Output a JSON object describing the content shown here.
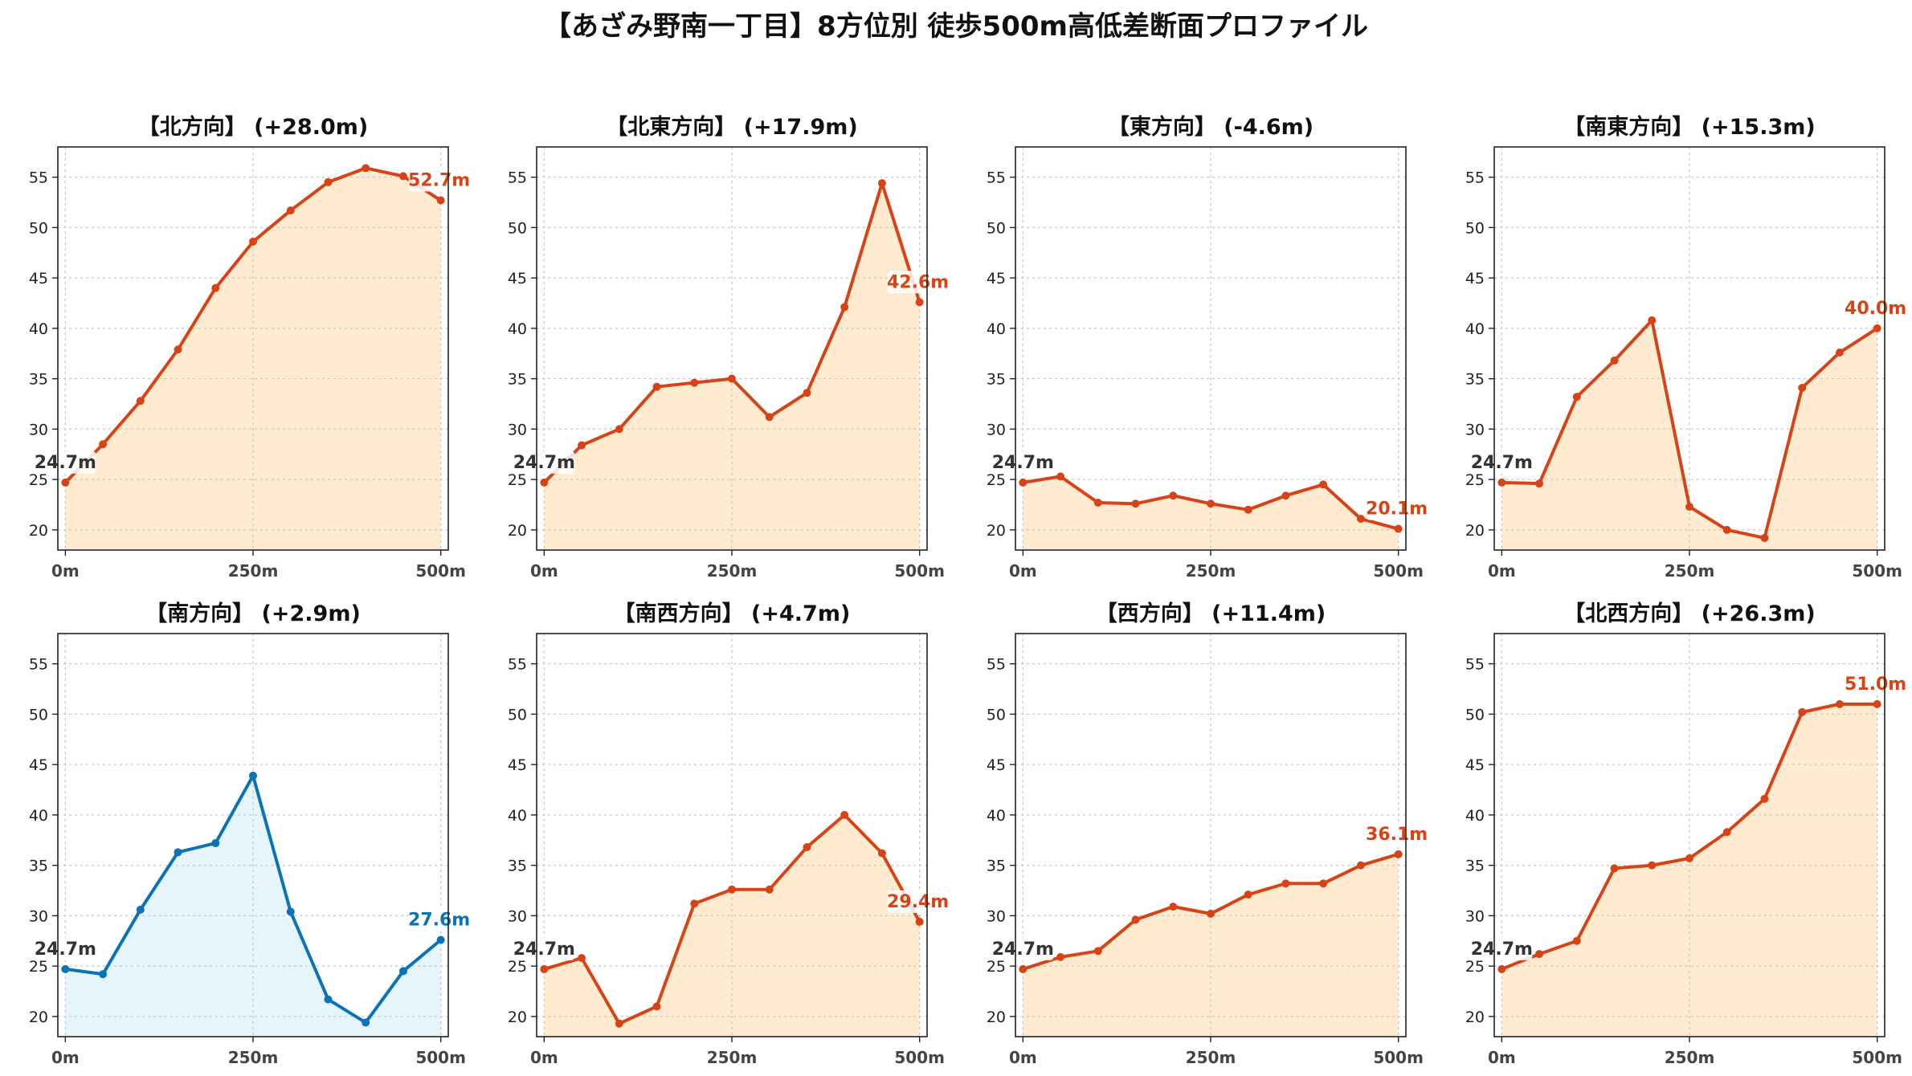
{
  "suptitle": "【あざみ野南一丁目】8方位別 徒歩500m高低差断面プロファイル",
  "colors": {
    "up_line": "#d84315",
    "up_fill": "#ffebd0",
    "down_line": "#0a73b6",
    "down_fill": "#e6f4fb",
    "start_label": "#333333"
  },
  "chart_data": [
    {
      "type": "area",
      "title": "【北方向】 (+28.0m)",
      "color": "up",
      "x": [
        0,
        50,
        100,
        150,
        200,
        250,
        300,
        350,
        400,
        450,
        500
      ],
      "y": [
        24.7,
        28.5,
        32.8,
        37.9,
        44.0,
        48.6,
        51.7,
        54.5,
        55.9,
        55.1,
        52.7
      ],
      "start_label": "24.7m",
      "end_label": "52.7m",
      "xticks": [
        "0m",
        "250m",
        "500m"
      ],
      "xlim": [
        -10,
        510
      ],
      "ylim": [
        18,
        58
      ],
      "yticks": [
        20,
        25,
        30,
        35,
        40,
        45,
        50,
        55
      ],
      "grid": true
    },
    {
      "type": "area",
      "title": "【北東方向】 (+17.9m)",
      "color": "up",
      "x": [
        0,
        50,
        100,
        150,
        200,
        250,
        300,
        350,
        400,
        450,
        500
      ],
      "y": [
        24.7,
        28.4,
        30.0,
        34.2,
        34.6,
        35.0,
        31.2,
        33.6,
        42.1,
        54.4,
        42.6
      ],
      "start_label": "24.7m",
      "end_label": "42.6m",
      "xticks": [
        "0m",
        "250m",
        "500m"
      ],
      "xlim": [
        -10,
        510
      ],
      "ylim": [
        18,
        58
      ],
      "yticks": [
        20,
        25,
        30,
        35,
        40,
        45,
        50,
        55
      ],
      "grid": true
    },
    {
      "type": "area",
      "title": "【東方向】 (-4.6m)",
      "color": "up",
      "x": [
        0,
        50,
        100,
        150,
        200,
        250,
        300,
        350,
        400,
        450,
        500
      ],
      "y": [
        24.7,
        25.3,
        22.7,
        22.6,
        23.4,
        22.6,
        22.0,
        23.4,
        24.5,
        21.1,
        20.1
      ],
      "start_label": "24.7m",
      "end_label": "20.1m",
      "xticks": [
        "0m",
        "250m",
        "500m"
      ],
      "xlim": [
        -10,
        510
      ],
      "ylim": [
        18,
        58
      ],
      "yticks": [
        20,
        25,
        30,
        35,
        40,
        45,
        50,
        55
      ],
      "grid": true
    },
    {
      "type": "area",
      "title": "【南東方向】 (+15.3m)",
      "color": "up",
      "x": [
        0,
        50,
        100,
        150,
        200,
        250,
        300,
        350,
        400,
        450,
        500
      ],
      "y": [
        24.7,
        24.6,
        33.2,
        36.8,
        40.8,
        22.3,
        20.0,
        19.2,
        34.1,
        37.6,
        40.0
      ],
      "start_label": "24.7m",
      "end_label": "40.0m",
      "xticks": [
        "0m",
        "250m",
        "500m"
      ],
      "xlim": [
        -10,
        510
      ],
      "ylim": [
        18,
        58
      ],
      "yticks": [
        20,
        25,
        30,
        35,
        40,
        45,
        50,
        55
      ],
      "grid": true
    },
    {
      "type": "area",
      "title": "【南方向】 (+2.9m)",
      "color": "down",
      "x": [
        0,
        50,
        100,
        150,
        200,
        250,
        300,
        350,
        400,
        450,
        500
      ],
      "y": [
        24.7,
        24.2,
        30.6,
        36.3,
        37.2,
        43.9,
        30.4,
        21.7,
        19.4,
        24.5,
        27.6
      ],
      "start_label": "24.7m",
      "end_label": "27.6m",
      "xticks": [
        "0m",
        "250m",
        "500m"
      ],
      "xlim": [
        -10,
        510
      ],
      "ylim": [
        18,
        58
      ],
      "yticks": [
        20,
        25,
        30,
        35,
        40,
        45,
        50,
        55
      ],
      "grid": true
    },
    {
      "type": "area",
      "title": "【南西方向】 (+4.7m)",
      "color": "up",
      "x": [
        0,
        50,
        100,
        150,
        200,
        250,
        300,
        350,
        400,
        450,
        500
      ],
      "y": [
        24.7,
        25.8,
        19.3,
        21.0,
        31.2,
        32.6,
        32.6,
        36.8,
        40.0,
        36.2,
        29.4
      ],
      "start_label": "24.7m",
      "end_label": "29.4m",
      "xticks": [
        "0m",
        "250m",
        "500m"
      ],
      "xlim": [
        -10,
        510
      ],
      "ylim": [
        18,
        58
      ],
      "yticks": [
        20,
        25,
        30,
        35,
        40,
        45,
        50,
        55
      ],
      "grid": true
    },
    {
      "type": "area",
      "title": "【西方向】 (+11.4m)",
      "color": "up",
      "x": [
        0,
        50,
        100,
        150,
        200,
        250,
        300,
        350,
        400,
        450,
        500
      ],
      "y": [
        24.7,
        25.9,
        26.5,
        29.6,
        30.9,
        30.2,
        32.1,
        33.2,
        33.2,
        35.0,
        36.1
      ],
      "start_label": "24.7m",
      "end_label": "36.1m",
      "xticks": [
        "0m",
        "250m",
        "500m"
      ],
      "xlim": [
        -10,
        510
      ],
      "ylim": [
        18,
        58
      ],
      "yticks": [
        20,
        25,
        30,
        35,
        40,
        45,
        50,
        55
      ],
      "grid": true
    },
    {
      "type": "area",
      "title": "【北西方向】 (+26.3m)",
      "color": "up",
      "x": [
        0,
        50,
        100,
        150,
        200,
        250,
        300,
        350,
        400,
        450,
        500
      ],
      "y": [
        24.7,
        26.2,
        27.5,
        34.7,
        35.0,
        35.7,
        38.3,
        41.6,
        50.2,
        51.0,
        51.0
      ],
      "start_label": "24.7m",
      "end_label": "51.0m",
      "xticks": [
        "0m",
        "250m",
        "500m"
      ],
      "xlim": [
        -10,
        510
      ],
      "ylim": [
        18,
        58
      ],
      "yticks": [
        20,
        25,
        30,
        35,
        40,
        45,
        50,
        55
      ],
      "grid": true
    }
  ]
}
